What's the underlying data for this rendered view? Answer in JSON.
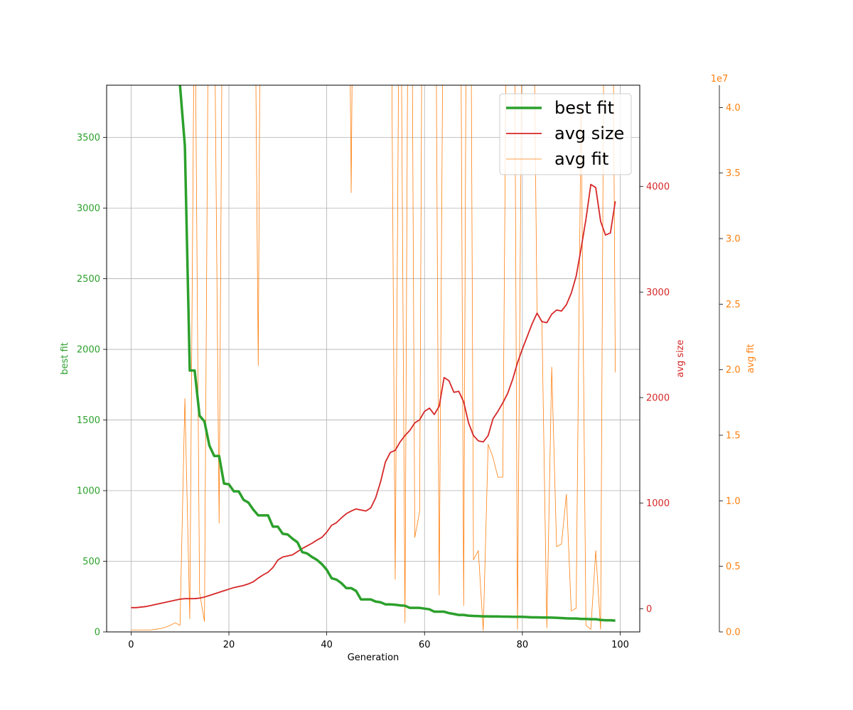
{
  "chart_data": {
    "type": "line",
    "xlabel": "Generation",
    "xlim": [
      -5,
      104
    ],
    "xticks": [
      0,
      20,
      40,
      60,
      80,
      100
    ],
    "grid": true,
    "legend_position": "top-right",
    "axes": {
      "best_fit": {
        "label": "best fit",
        "color": "#2ca02c",
        "ylim": [
          0,
          3870
        ],
        "ticks": [
          0,
          500,
          1000,
          1500,
          2000,
          2500,
          3000,
          3500
        ]
      },
      "avg_size": {
        "label": "avg size",
        "color": "#d62728",
        "ylim": [
          -220,
          4960
        ],
        "ticks": [
          0,
          1000,
          2000,
          3000,
          4000
        ]
      },
      "avg_fit": {
        "label": "avg fit",
        "color": "#ff7f0e",
        "ylim": [
          0,
          4.17
        ],
        "ticks": [
          0.0,
          0.5,
          1.0,
          1.5,
          2.0,
          2.5,
          3.0,
          3.5,
          4.0
        ],
        "tick_labels": [
          "0.0",
          "0.5",
          "1.0",
          "1.5",
          "2.0",
          "2.5",
          "3.0",
          "3.5",
          "4.0"
        ],
        "offset_text": "1e7"
      }
    },
    "legend": [
      "best fit",
      "avg size",
      "avg fit"
    ],
    "series": [
      {
        "name": "best fit",
        "axis": "best_fit",
        "line_width": 3.5,
        "x": [
          10,
          11,
          12,
          13,
          14,
          15,
          16,
          17,
          18,
          19,
          20,
          21,
          22,
          23,
          24,
          25,
          26,
          27,
          28,
          29,
          30,
          31,
          32,
          33,
          34,
          35,
          36,
          37,
          38,
          39,
          40,
          41,
          42,
          43,
          44,
          45,
          46,
          47,
          48,
          49,
          50,
          51,
          52,
          53,
          54,
          55,
          56,
          57,
          58,
          59,
          60,
          61,
          62,
          63,
          64,
          65,
          66,
          67,
          68,
          69,
          70,
          71,
          72,
          73,
          74,
          75,
          76,
          77,
          78,
          79,
          80,
          81,
          82,
          83,
          84,
          85,
          86,
          87,
          88,
          89,
          90,
          91,
          92,
          93,
          94,
          95,
          96,
          97,
          98,
          99
        ],
        "values": [
          3870,
          3440,
          1850,
          1850,
          1530,
          1490,
          1320,
          1245,
          1245,
          1050,
          1045,
          995,
          995,
          935,
          915,
          865,
          825,
          825,
          825,
          745,
          745,
          695,
          690,
          660,
          635,
          565,
          555,
          530,
          510,
          480,
          440,
          380,
          370,
          345,
          310,
          310,
          290,
          230,
          230,
          230,
          215,
          210,
          195,
          195,
          192,
          188,
          185,
          170,
          170,
          170,
          165,
          160,
          143,
          143,
          143,
          133,
          127,
          120,
          120,
          115,
          113,
          112,
          110,
          110,
          109,
          109,
          108,
          108,
          107,
          107,
          107,
          105,
          103,
          103,
          102,
          102,
          101,
          100,
          98,
          96,
          95,
          95,
          92,
          92,
          90,
          90,
          85,
          82,
          82,
          80
        ]
      },
      {
        "name": "avg size",
        "axis": "avg_size",
        "line_width": 1.8,
        "x": [
          0,
          1,
          2,
          3,
          4,
          5,
          6,
          7,
          8,
          9,
          10,
          11,
          12,
          13,
          14,
          15,
          16,
          17,
          18,
          19,
          20,
          21,
          22,
          23,
          24,
          25,
          26,
          27,
          28,
          29,
          30,
          31,
          32,
          33,
          34,
          35,
          36,
          37,
          38,
          39,
          40,
          41,
          42,
          43,
          44,
          45,
          46,
          47,
          48,
          49,
          50,
          51,
          52,
          53,
          54,
          55,
          56,
          57,
          58,
          59,
          60,
          61,
          62,
          63,
          64,
          65,
          66,
          67,
          68,
          69,
          70,
          71,
          72,
          73,
          74,
          75,
          76,
          77,
          78,
          79,
          80,
          81,
          82,
          83,
          84,
          85,
          86,
          87,
          88,
          89,
          90,
          91,
          92,
          93,
          94,
          95,
          96,
          97,
          98,
          99
        ],
        "values": [
          10,
          10,
          15,
          20,
          30,
          40,
          50,
          60,
          70,
          80,
          90,
          95,
          95,
          95,
          100,
          110,
          125,
          140,
          155,
          170,
          185,
          200,
          210,
          220,
          235,
          255,
          290,
          320,
          345,
          390,
          460,
          490,
          500,
          510,
          540,
          570,
          595,
          620,
          650,
          675,
          725,
          790,
          815,
          860,
          900,
          925,
          945,
          935,
          925,
          955,
          1050,
          1200,
          1390,
          1480,
          1500,
          1580,
          1640,
          1690,
          1760,
          1790,
          1870,
          1900,
          1840,
          1920,
          2190,
          2160,
          2050,
          2060,
          1960,
          1760,
          1640,
          1590,
          1580,
          1640,
          1800,
          1870,
          1950,
          2040,
          2170,
          2330,
          2460,
          2580,
          2700,
          2800,
          2720,
          2710,
          2790,
          2830,
          2820,
          2880,
          2990,
          3150,
          3410,
          3690,
          4020,
          3990,
          3670,
          3540,
          3560,
          3860
        ]
      },
      {
        "name": "avg fit",
        "axis": "avg_fit",
        "line_width": 0.8,
        "x": [
          0,
          1,
          2,
          3,
          4,
          5,
          6,
          7,
          8,
          9,
          10,
          11,
          12,
          13,
          14,
          15,
          16,
          17,
          18,
          19,
          20,
          21,
          22,
          23,
          24,
          25,
          26,
          27,
          28,
          29,
          30,
          31,
          32,
          33,
          34,
          35,
          36,
          37,
          38,
          39,
          40,
          41,
          42,
          43,
          44,
          45,
          46,
          47,
          48,
          49,
          50,
          51,
          52,
          53,
          54,
          55,
          56,
          57,
          58,
          59,
          60,
          61,
          62,
          63,
          64,
          65,
          66,
          67,
          68,
          69,
          70,
          71,
          72,
          73,
          74,
          75,
          76,
          77,
          78,
          79,
          80,
          81,
          82,
          83,
          84,
          85,
          86,
          87,
          88,
          89,
          90,
          91,
          92,
          93,
          94,
          95,
          96,
          97,
          98,
          99
        ],
        "values": [
          0.015,
          0.015,
          0.015,
          0.015,
          0.015,
          0.02,
          0.025,
          0.035,
          0.05,
          0.07,
          0.05,
          1.78,
          0.1,
          5.2,
          0.3,
          0.08,
          6.0,
          5.0,
          0.83,
          7.0,
          8.0,
          6.0,
          9.0,
          7.0,
          8.0,
          6.5,
          2.03,
          9.0,
          8.0,
          7.0,
          6.0,
          9.0,
          8.0,
          7.0,
          6.0,
          8.0,
          9.0,
          7.0,
          6.0,
          8.0,
          9.0,
          8.0,
          7.0,
          6.0,
          8.0,
          3.35,
          8.0,
          7.0,
          9.0,
          8.0,
          7.0,
          8.0,
          9.0,
          6.0,
          0.4,
          6.0,
          0.07,
          8.0,
          0.72,
          0.92,
          9.0,
          8.0,
          7.0,
          0.28,
          6.0,
          9.0,
          7.0,
          8.0,
          0.2,
          9.0,
          0.55,
          0.62,
          0.01,
          1.43,
          1.33,
          1.18,
          1.18,
          6.0,
          8.0,
          0.02,
          5.0,
          8.0,
          6.0,
          2.43,
          2.36,
          0.03,
          2.02,
          0.65,
          0.67,
          1.05,
          0.16,
          0.18,
          4.0,
          0.05,
          0.02,
          0.62,
          0.02,
          7.0,
          8.0,
          1.98
        ]
      }
    ]
  }
}
